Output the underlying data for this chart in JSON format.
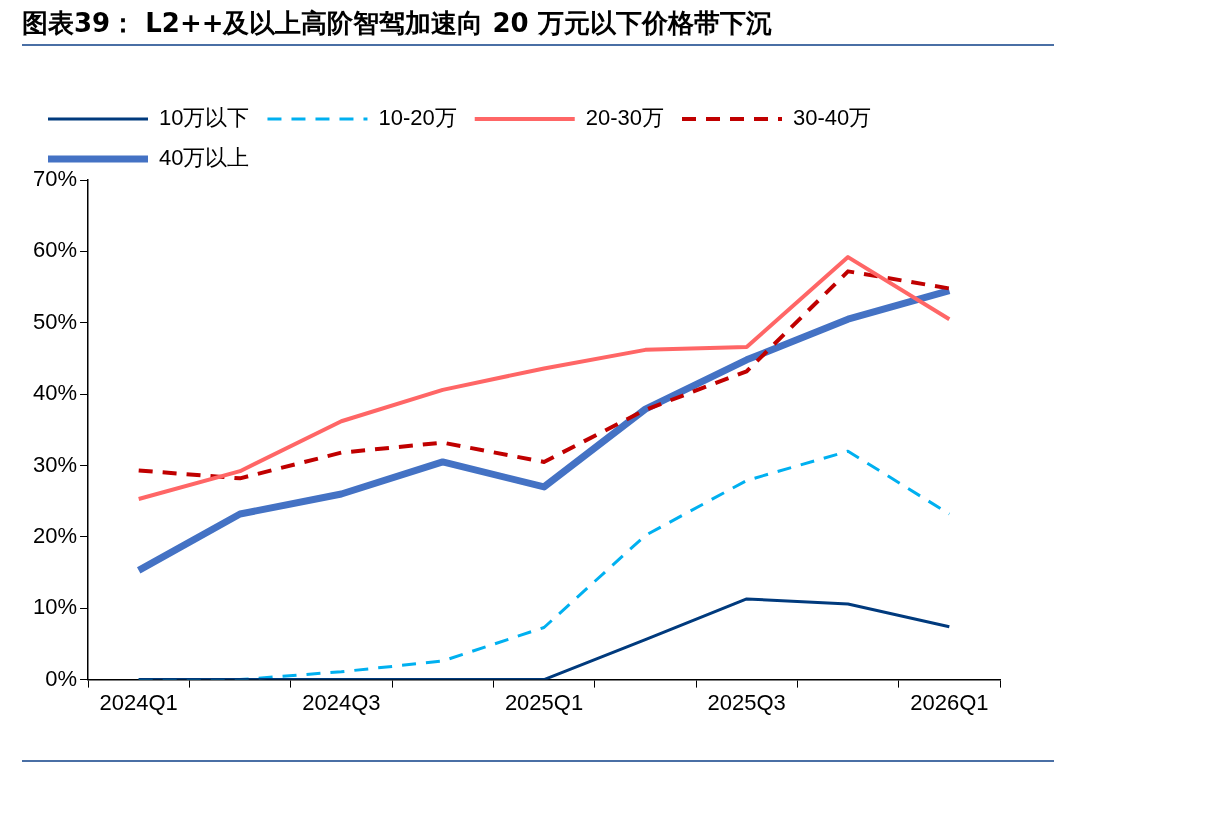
{
  "chart_data": {
    "type": "line",
    "title": "图表39： L2++及以上高阶智驾加速向 20 万元以下价格带下沉",
    "categories": [
      "2024Q1",
      null,
      "2024Q3",
      null,
      "2025Q1",
      null,
      "2025Q3",
      null,
      "2026Q1"
    ],
    "series": [
      {
        "name": "10万以下",
        "color": "#003a7d",
        "line_style": "solid",
        "values": [
          0,
          0,
          0,
          0,
          0,
          5.6,
          11.3,
          10.6,
          7.4
        ]
      },
      {
        "name": "10-20万",
        "color": "#00b0f0",
        "line_style": "dashed",
        "values": [
          0,
          0,
          1.1,
          2.6,
          7.3,
          20.2,
          27.9,
          32.0,
          23.2
        ]
      },
      {
        "name": "20-30万",
        "color": "#ff6666",
        "line_style": "solid",
        "values": [
          25.3,
          29.2,
          36.2,
          40.6,
          43.6,
          46.2,
          46.6,
          59.2,
          50.5
        ]
      },
      {
        "name": "30-40万",
        "color": "#c00000",
        "line_style": "dashed",
        "values": [
          29.3,
          28.2,
          31.8,
          33.2,
          30.5,
          37.8,
          43.2,
          57.2,
          54.8
        ]
      },
      {
        "name": "40万以上",
        "color": "#4472c4",
        "line_style": "solid",
        "values": [
          15.3,
          23.2,
          26.0,
          30.5,
          27.0,
          37.9,
          44.8,
          50.5,
          54.5
        ]
      }
    ],
    "ylim": [
      0,
      70
    ],
    "yticks": [
      {
        "value": 0,
        "label": "0%"
      },
      {
        "value": 10,
        "label": "10%"
      },
      {
        "value": 20,
        "label": "20%"
      },
      {
        "value": 30,
        "label": "30%"
      },
      {
        "value": 40,
        "label": "40%"
      },
      {
        "value": 50,
        "label": "50%"
      },
      {
        "value": 60,
        "label": "60%"
      },
      {
        "value": 70,
        "label": "70%"
      }
    ],
    "grid": false,
    "legend": "top",
    "marker": "none"
  }
}
